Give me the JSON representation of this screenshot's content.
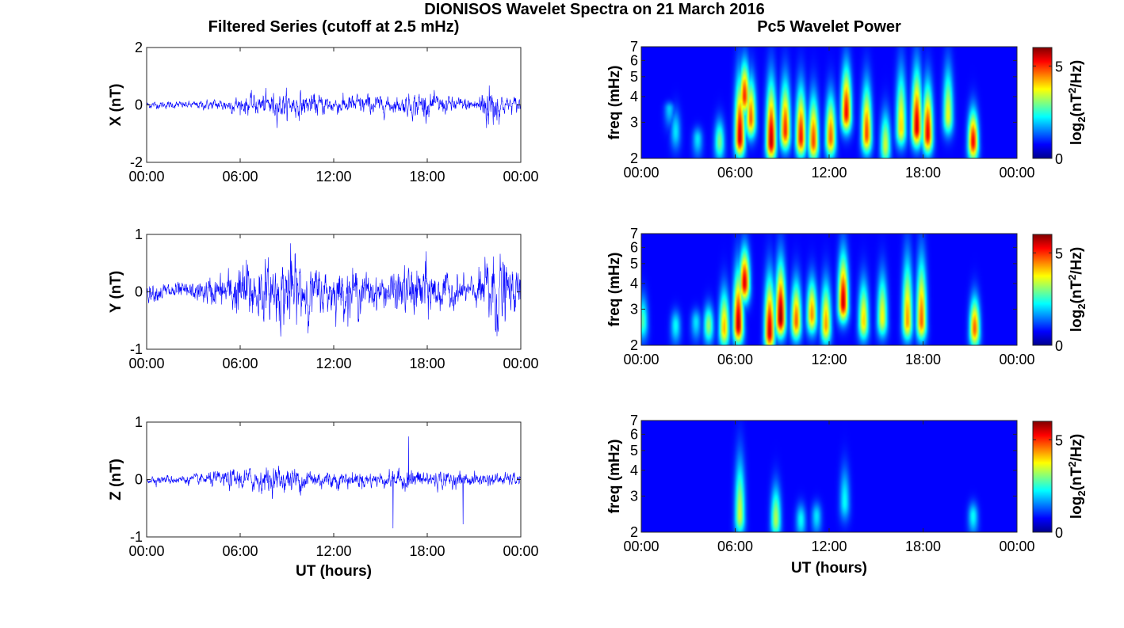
{
  "figure": {
    "suptitle": "DIONISOS Wavelet Spectra on 21 March 2016",
    "left_title": "Filtered Series (cutoff at 2.5 mHz)",
    "right_title": "Pc5 Wavelet Power",
    "x_tick_labels": [
      "00:00",
      "06:00",
      "12:00",
      "18:00",
      "00:00"
    ],
    "xlabel": "UT (hours)",
    "freq_label": "freq (mHz)",
    "colorbar_label": "log2(nT2/Hz)",
    "colorbar_label_parts": {
      "base": "log",
      "sub": "2",
      "open": "(nT",
      "sup": "2",
      "close": "/Hz)"
    }
  },
  "colors": {
    "series_line": "#0000ff",
    "colormap": "jet",
    "background": "#00008f"
  },
  "chart_data": [
    {
      "type": "line",
      "component": "X",
      "ylabel": "X (nT)",
      "xlim": [
        0,
        24
      ],
      "ylim": [
        -2,
        2
      ],
      "yticks": [
        -2,
        0,
        2
      ],
      "x_unit": "hours UT",
      "envelope": [
        {
          "t": 0,
          "amp": 0.12
        },
        {
          "t": 3,
          "amp": 0.12
        },
        {
          "t": 5,
          "amp": 0.22
        },
        {
          "t": 7,
          "amp": 0.35
        },
        {
          "t": 8.5,
          "amp": 0.45
        },
        {
          "t": 10,
          "amp": 0.4
        },
        {
          "t": 12,
          "amp": 0.3
        },
        {
          "t": 14,
          "amp": 0.35
        },
        {
          "t": 16,
          "amp": 0.25
        },
        {
          "t": 17.5,
          "amp": 0.45
        },
        {
          "t": 19,
          "amp": 0.3
        },
        {
          "t": 21,
          "amp": 0.2
        },
        {
          "t": 22,
          "amp": 0.9
        },
        {
          "t": 23,
          "amp": 0.25
        },
        {
          "t": 24,
          "amp": 0.3
        }
      ]
    },
    {
      "type": "line",
      "component": "Y",
      "ylabel": "Y (nT)",
      "xlim": [
        0,
        24
      ],
      "ylim": [
        -1,
        1
      ],
      "yticks": [
        -1,
        0,
        1
      ],
      "x_unit": "hours UT",
      "envelope": [
        {
          "t": 0,
          "amp": 0.15
        },
        {
          "t": 3,
          "amp": 0.15
        },
        {
          "t": 5,
          "amp": 0.3
        },
        {
          "t": 6.5,
          "amp": 0.55
        },
        {
          "t": 8,
          "amp": 0.45
        },
        {
          "t": 9.3,
          "amp": 0.65
        },
        {
          "t": 11,
          "amp": 0.35
        },
        {
          "t": 13,
          "amp": 0.4
        },
        {
          "t": 15,
          "amp": 0.25
        },
        {
          "t": 17.8,
          "amp": 0.5
        },
        {
          "t": 19,
          "amp": 0.3
        },
        {
          "t": 21,
          "amp": 0.2
        },
        {
          "t": 22.3,
          "amp": 0.8
        },
        {
          "t": 23.5,
          "amp": 0.3
        },
        {
          "t": 24,
          "amp": 0.4
        }
      ]
    },
    {
      "type": "line",
      "component": "Z",
      "ylabel": "Z (nT)",
      "xlim": [
        0,
        24
      ],
      "ylim": [
        -1,
        1
      ],
      "yticks": [
        -1,
        0,
        1
      ],
      "x_unit": "hours UT",
      "envelope": [
        {
          "t": 0,
          "amp": 0.07
        },
        {
          "t": 3,
          "amp": 0.08
        },
        {
          "t": 6,
          "amp": 0.18
        },
        {
          "t": 9,
          "amp": 0.22
        },
        {
          "t": 12,
          "amp": 0.15
        },
        {
          "t": 15,
          "amp": 0.12
        },
        {
          "t": 17,
          "amp": 0.18
        },
        {
          "t": 20,
          "amp": 0.12
        },
        {
          "t": 24,
          "amp": 0.1
        }
      ],
      "spikes": [
        {
          "t": 15.8,
          "value": -0.85
        },
        {
          "t": 16.8,
          "value": 0.75
        },
        {
          "t": 20.3,
          "value": -0.78
        }
      ]
    },
    {
      "type": "heatmap",
      "component": "X",
      "ylabel": "freq (mHz)",
      "xlabel": "",
      "xlim": [
        0,
        24
      ],
      "ylim_mHz": [
        2,
        7
      ],
      "y_scale": "log",
      "yticks": [
        2,
        3,
        4,
        5,
        6,
        7
      ],
      "colorbar": {
        "range": [
          0,
          6
        ],
        "ticks": [
          0,
          5
        ]
      },
      "events": [
        {
          "t": 2.2,
          "f": 2.7,
          "power": 1.6,
          "ext": 3.9
        },
        {
          "t": 1.8,
          "f": 3.5,
          "power": 1.4,
          "ext": 3.9
        },
        {
          "t": 3.6,
          "f": 2.5,
          "power": 1.6,
          "ext": 3.0
        },
        {
          "t": 5.0,
          "f": 2.4,
          "power": 2.6,
          "ext": 3.5
        },
        {
          "t": 6.3,
          "f": 2.5,
          "power": 5.6,
          "ext": 6.5
        },
        {
          "t": 6.6,
          "f": 4.0,
          "power": 5.0,
          "ext": 7.0
        },
        {
          "t": 7.0,
          "f": 3.1,
          "power": 4.6,
          "ext": 6.0
        },
        {
          "t": 8.3,
          "f": 2.4,
          "power": 5.7,
          "ext": 6.2
        },
        {
          "t": 9.2,
          "f": 2.7,
          "power": 5.0,
          "ext": 6.0
        },
        {
          "t": 10.2,
          "f": 2.5,
          "power": 5.2,
          "ext": 5.6
        },
        {
          "t": 11.0,
          "f": 2.4,
          "power": 4.8,
          "ext": 5.0
        },
        {
          "t": 12.1,
          "f": 2.5,
          "power": 4.6,
          "ext": 5.0
        },
        {
          "t": 13.1,
          "f": 3.3,
          "power": 5.3,
          "ext": 7.0
        },
        {
          "t": 14.4,
          "f": 2.6,
          "power": 4.8,
          "ext": 5.8
        },
        {
          "t": 15.6,
          "f": 2.3,
          "power": 3.2,
          "ext": 4.0
        },
        {
          "t": 16.6,
          "f": 2.8,
          "power": 3.8,
          "ext": 7.0
        },
        {
          "t": 17.6,
          "f": 2.8,
          "power": 5.6,
          "ext": 7.0
        },
        {
          "t": 18.3,
          "f": 2.6,
          "power": 5.4,
          "ext": 5.8
        },
        {
          "t": 19.6,
          "f": 3.2,
          "power": 3.4,
          "ext": 7.0
        },
        {
          "t": 21.2,
          "f": 2.4,
          "power": 5.3,
          "ext": 4.0
        }
      ]
    },
    {
      "type": "heatmap",
      "component": "Y",
      "ylabel": "freq (mHz)",
      "xlabel": "",
      "xlim": [
        0,
        24
      ],
      "ylim_mHz": [
        2,
        7
      ],
      "y_scale": "log",
      "yticks": [
        2,
        3,
        4,
        5,
        6,
        7
      ],
      "colorbar": {
        "range": [
          0,
          6
        ],
        "ticks": [
          0,
          5
        ]
      },
      "events": [
        {
          "t": 0.1,
          "f": 2.6,
          "power": 2.3,
          "ext": 4.0
        },
        {
          "t": 2.2,
          "f": 2.5,
          "power": 1.8,
          "ext": 3.2
        },
        {
          "t": 3.5,
          "f": 2.6,
          "power": 1.6,
          "ext": 3.2
        },
        {
          "t": 4.3,
          "f": 2.5,
          "power": 2.8,
          "ext": 3.5
        },
        {
          "t": 5.3,
          "f": 2.4,
          "power": 4.0,
          "ext": 4.5
        },
        {
          "t": 6.2,
          "f": 2.5,
          "power": 5.7,
          "ext": 6.0
        },
        {
          "t": 6.6,
          "f": 4.0,
          "power": 5.5,
          "ext": 7.0
        },
        {
          "t": 8.2,
          "f": 2.3,
          "power": 5.6,
          "ext": 5.5
        },
        {
          "t": 8.9,
          "f": 2.7,
          "power": 6.0,
          "ext": 6.5
        },
        {
          "t": 9.9,
          "f": 2.6,
          "power": 4.6,
          "ext": 5.0
        },
        {
          "t": 10.9,
          "f": 2.8,
          "power": 4.3,
          "ext": 5.0
        },
        {
          "t": 11.8,
          "f": 2.5,
          "power": 4.2,
          "ext": 5.0
        },
        {
          "t": 12.9,
          "f": 3.2,
          "power": 5.6,
          "ext": 7.0
        },
        {
          "t": 14.2,
          "f": 2.6,
          "power": 3.8,
          "ext": 5.0
        },
        {
          "t": 15.4,
          "f": 2.7,
          "power": 3.5,
          "ext": 5.5
        },
        {
          "t": 17.0,
          "f": 2.6,
          "power": 4.2,
          "ext": 7.0
        },
        {
          "t": 17.9,
          "f": 2.6,
          "power": 4.6,
          "ext": 7.0
        },
        {
          "t": 21.3,
          "f": 2.4,
          "power": 4.6,
          "ext": 4.0
        }
      ]
    },
    {
      "type": "heatmap",
      "component": "Z",
      "ylabel": "freq (mHz)",
      "xlabel": "UT (hours)",
      "xlim": [
        0,
        24
      ],
      "ylim_mHz": [
        2,
        7
      ],
      "y_scale": "log",
      "yticks": [
        2,
        3,
        4,
        5,
        6,
        7
      ],
      "colorbar": {
        "range": [
          0,
          6
        ],
        "ticks": [
          0,
          5
        ]
      },
      "events": [
        {
          "t": 6.3,
          "f": 2.4,
          "power": 3.2,
          "ext": 6.0
        },
        {
          "t": 8.6,
          "f": 2.3,
          "power": 3.0,
          "ext": 4.0
        },
        {
          "t": 10.2,
          "f": 2.3,
          "power": 1.8,
          "ext": 3.0
        },
        {
          "t": 11.2,
          "f": 2.4,
          "power": 1.6,
          "ext": 3.0
        },
        {
          "t": 13.0,
          "f": 2.8,
          "power": 1.8,
          "ext": 5.0
        },
        {
          "t": 21.2,
          "f": 2.4,
          "power": 1.8,
          "ext": 3.0
        }
      ]
    }
  ]
}
